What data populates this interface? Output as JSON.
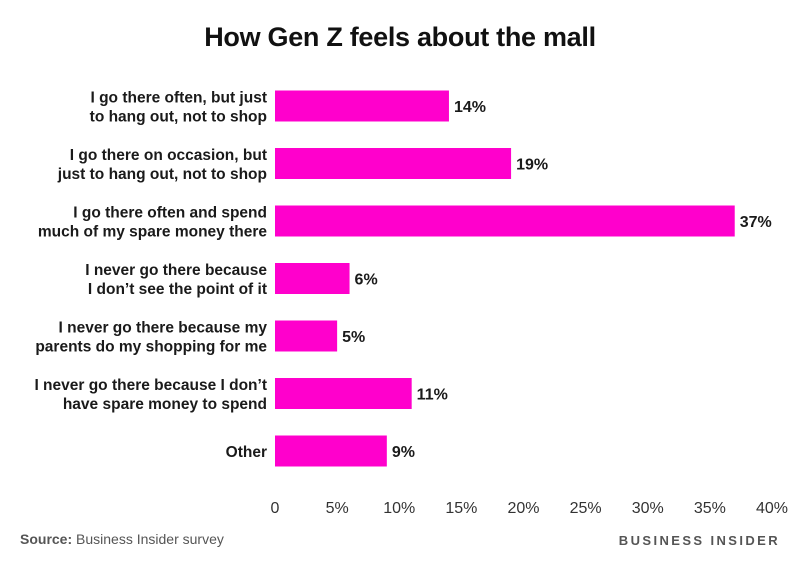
{
  "title": "How Gen Z feels about the mall",
  "source": {
    "prefix": "Source:",
    "text": " Business Insider survey"
  },
  "brand": "BUSINESS INSIDER",
  "colors": {
    "bar": "#ff00cc",
    "text": "#1a1a1a"
  },
  "chart_data": {
    "type": "bar",
    "orientation": "horizontal",
    "title": "How Gen Z feels about the mall",
    "categories": [
      [
        "I go there often, but just",
        "to hang out, not to shop"
      ],
      [
        "I go there on occasion, but",
        "just to hang out, not to shop"
      ],
      [
        "I go there often and spend",
        "much of my spare money there"
      ],
      [
        "I never go there because",
        "I don’t see the point of it"
      ],
      [
        "I never go there because my",
        "parents do my shopping for me"
      ],
      [
        "I never go there because I don’t",
        "have spare money to spend"
      ],
      [
        "Other"
      ]
    ],
    "values": [
      14,
      19,
      37,
      6,
      5,
      11,
      9
    ],
    "value_labels": [
      "14%",
      "19%",
      "37%",
      "6%",
      "5%",
      "11%",
      "9%"
    ],
    "xlim": [
      0,
      40
    ],
    "xticks": [
      0,
      5,
      10,
      15,
      20,
      25,
      30,
      35,
      40
    ],
    "xtick_labels": [
      "0",
      "5%",
      "10%",
      "15%",
      "20%",
      "25%",
      "30%",
      "35%",
      "40%"
    ],
    "xlabel": "",
    "ylabel": "",
    "grid": false,
    "legend": "none"
  }
}
